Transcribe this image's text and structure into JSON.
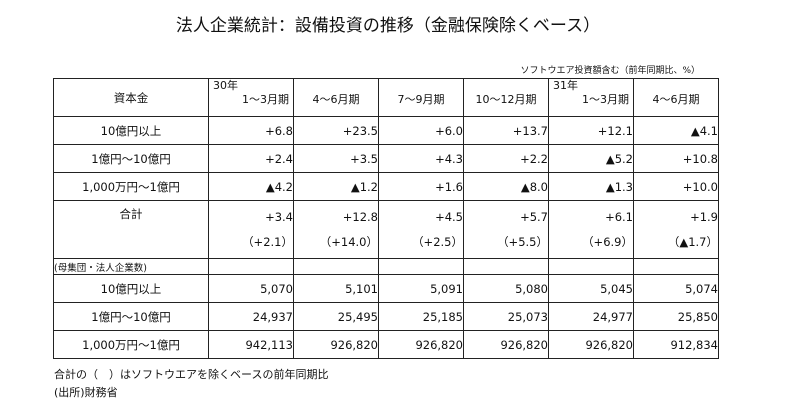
{
  "title": "法人企業統計：設備投資の推移（金融保険除くベース）",
  "unit_note": "ソフトウエア投資額含む（前年同期比、%）",
  "header": {
    "label": "資本金",
    "periods": [
      {
        "year": "30年",
        "period": "1～3月期"
      },
      {
        "year": "",
        "period": "4～6月期"
      },
      {
        "year": "",
        "period": "7～9月期"
      },
      {
        "year": "",
        "period": "10～12月期"
      },
      {
        "year": "31年",
        "period": "1～3月期"
      },
      {
        "year": "",
        "period": "4～6月期"
      }
    ]
  },
  "growth_rows": [
    {
      "label": "10億円以上",
      "values": [
        "+6.8",
        "+23.5",
        "+6.0",
        "+13.7",
        "+12.1",
        "▲4.1"
      ]
    },
    {
      "label": "1億円～10億円",
      "values": [
        "+2.4",
        "+3.5",
        "+4.3",
        "+2.2",
        "▲5.2",
        "+10.8"
      ]
    },
    {
      "label": "1,000万円～1億円",
      "values": [
        "▲4.2",
        "▲1.2",
        "+1.6",
        "▲8.0",
        "▲1.3",
        "+10.0"
      ]
    }
  ],
  "total_row": {
    "label": "合計",
    "values": [
      "+3.4",
      "+12.8",
      "+4.5",
      "+5.7",
      "+6.1",
      "+1.9"
    ],
    "paren_values": [
      "（+2.1）",
      "（+14.0）",
      "（+2.5）",
      "（+5.5）",
      "（+6.9）",
      "（▲1.7）"
    ]
  },
  "section_label": "(母集団・法人企業数)",
  "count_rows": [
    {
      "label": "10億円以上",
      "values": [
        "5,070",
        "5,101",
        "5,091",
        "5,080",
        "5,045",
        "5,074"
      ]
    },
    {
      "label": "1億円～10億円",
      "values": [
        "24,937",
        "25,495",
        "25,185",
        "25,073",
        "24,977",
        "25,850"
      ]
    },
    {
      "label": "1,000万円～1億円",
      "values": [
        "942,113",
        "926,820",
        "926,820",
        "926,820",
        "926,820",
        "912,834"
      ]
    }
  ],
  "footnotes": {
    "line1": "合計の（　）はソフトウエアを除くベースの前年同期比",
    "line2": "(出所)財務省"
  }
}
